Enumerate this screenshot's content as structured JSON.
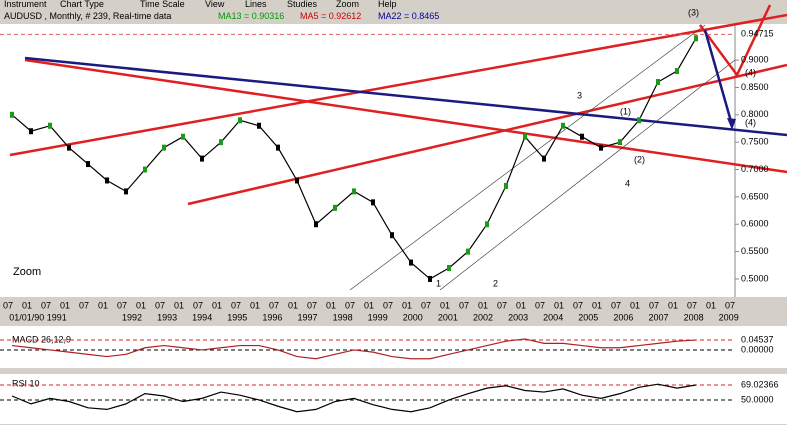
{
  "menu": [
    "Instrument",
    "Chart Type",
    "Time Scale",
    "View",
    "Lines",
    "Studies",
    "Zoom",
    "Help"
  ],
  "header": {
    "title": "AUDUSD , Monthly, # 239, Real-time data",
    "ma13": "MA13 = 0.90316",
    "ma5": "MA5 = 0.92612",
    "ma22": "MA22 = 0.8465"
  },
  "waves": [
    "1",
    "2",
    "3",
    "4",
    "(1)",
    "(2)",
    "(3)",
    "(4)",
    "(4)"
  ],
  "price": {
    "zoom": "Zoom",
    "ylim": [
      0.467,
      0.966
    ],
    "yticks": [
      {
        "value": 0.9,
        "label": "0.9000"
      },
      {
        "value": 0.85,
        "label": "0.8500"
      },
      {
        "value": 0.8,
        "label": "0.8000"
      },
      {
        "value": 0.75,
        "label": "0.7500"
      },
      {
        "value": 0.7,
        "label": "0.7000"
      },
      {
        "value": 0.65,
        "label": "0.6500"
      },
      {
        "value": 0.6,
        "label": "0.6000"
      },
      {
        "value": 0.55,
        "label": "0.5500"
      },
      {
        "value": 0.5,
        "label": "0.5000"
      }
    ],
    "last": {
      "value": 0.94715,
      "label": "0.94715"
    },
    "close": [
      0.8,
      0.77,
      0.78,
      0.74,
      0.71,
      0.68,
      0.66,
      0.7,
      0.74,
      0.76,
      0.72,
      0.75,
      0.79,
      0.78,
      0.74,
      0.68,
      0.6,
      0.63,
      0.66,
      0.64,
      0.58,
      0.53,
      0.5,
      0.52,
      0.55,
      0.6,
      0.67,
      0.76,
      0.72,
      0.78,
      0.76,
      0.74,
      0.75,
      0.79,
      0.86,
      0.88,
      0.94
    ]
  },
  "xaxis": {
    "months": [
      "07",
      "01",
      "07",
      "01",
      "07",
      "01",
      "07",
      "01",
      "07",
      "01",
      "07",
      "01",
      "07",
      "01",
      "07",
      "01",
      "07",
      "01",
      "07",
      "01",
      "07",
      "01",
      "07",
      "01",
      "07",
      "01",
      "07",
      "01",
      "07",
      "01",
      "07",
      "01",
      "07",
      "01",
      "07",
      "01",
      "07",
      "01",
      "07"
    ],
    "years": [
      "01/01/90 1991",
      "1992",
      "1993",
      "1994",
      "1995",
      "1996",
      "1997",
      "1998",
      "1999",
      "2000",
      "2001",
      "2002",
      "2003",
      "2004",
      "2005",
      "2006",
      "2007",
      "2008",
      "2009"
    ]
  },
  "macd": {
    "title": "MACD 26,12,9",
    "ylim": [
      -0.064,
      0.1
    ],
    "levels": [
      {
        "value": 0.04537,
        "label": "0.04537"
      },
      {
        "value": 0,
        "label": "0.00000"
      }
    ],
    "values": [
      0.02,
      0.01,
      0,
      -0.01,
      -0.02,
      -0.03,
      -0.02,
      0.01,
      0.02,
      0.01,
      0,
      0.01,
      0.02,
      0.02,
      0,
      -0.03,
      -0.04,
      -0.02,
      0,
      -0.01,
      -0.03,
      -0.04,
      -0.04,
      -0.02,
      0,
      0.02,
      0.04,
      0.05,
      0.03,
      0.03,
      0.02,
      0.01,
      0.01,
      0.02,
      0.03,
      0.04,
      0.045
    ]
  },
  "rsi": {
    "title": "RSI 10",
    "ylim": [
      22,
      80.4
    ],
    "levels": [
      {
        "value": 69.02366,
        "label": "69.02366"
      },
      {
        "value": 50,
        "label": "50.0000"
      }
    ],
    "values": [
      55,
      45,
      52,
      48,
      40,
      38,
      45,
      58,
      55,
      48,
      52,
      60,
      56,
      50,
      42,
      35,
      38,
      48,
      52,
      44,
      38,
      35,
      40,
      50,
      58,
      65,
      68,
      62,
      60,
      64,
      56,
      52,
      58,
      66,
      70,
      65,
      69
    ]
  }
}
